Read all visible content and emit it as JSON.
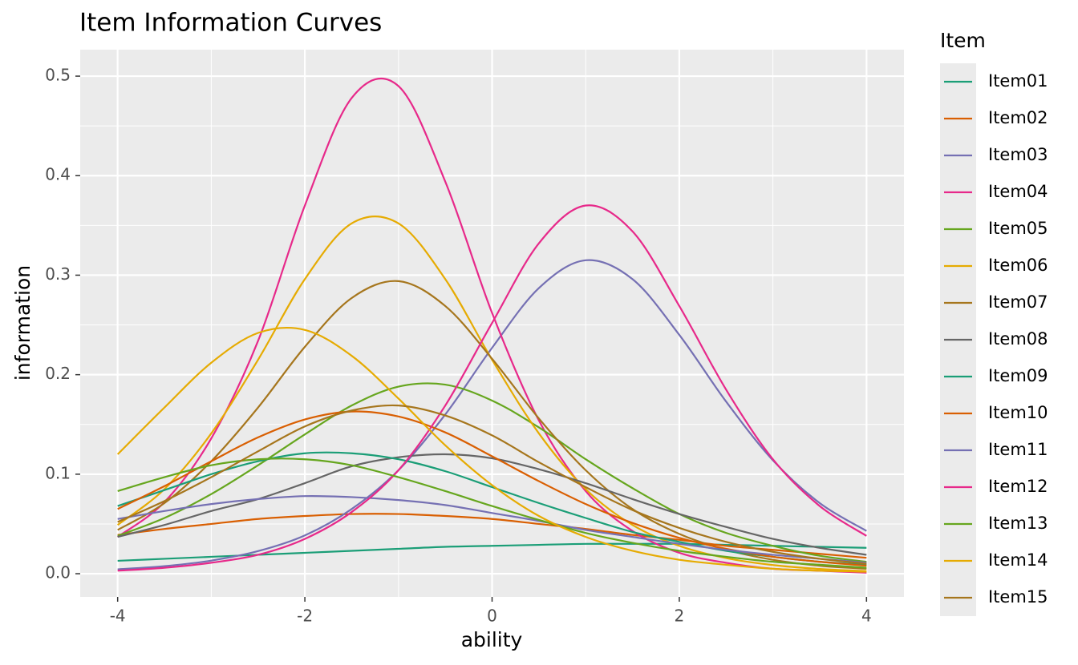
{
  "chart_data": {
    "type": "line",
    "title": "Item Information Curves",
    "x_label": "ability",
    "y_label": "information",
    "legend_title": "Item",
    "legend": "right",
    "grid": true,
    "xlim": [
      -4.4,
      4.4
    ],
    "ylim": [
      -0.0233,
      0.5266
    ],
    "xticks": [
      -4,
      -2,
      0,
      2,
      4
    ],
    "yticks": [
      {
        "value": 0,
        "label": "0.0"
      },
      0.1,
      0.2,
      0.3,
      0.4,
      0.5
    ],
    "x": [
      -4,
      -3.5,
      -3,
      -2.5,
      -2,
      -1.5,
      -1,
      -0.5,
      0,
      0.5,
      1,
      1.5,
      2,
      2.5,
      3,
      3.5,
      4
    ],
    "series": [
      {
        "name": "Item01",
        "color": "#1b9e77",
        "values": [
          0.013,
          0.015,
          0.017,
          0.019,
          0.021,
          0.023,
          0.025,
          0.027,
          0.028,
          0.029,
          0.03,
          0.03,
          0.03,
          0.029,
          0.028,
          0.027,
          0.026
        ]
      },
      {
        "name": "Item02",
        "color": "#d95f02",
        "values": [
          0.039,
          0.045,
          0.05,
          0.055,
          0.058,
          0.06,
          0.06,
          0.058,
          0.055,
          0.05,
          0.045,
          0.039,
          0.034,
          0.028,
          0.024,
          0.02,
          0.016
        ]
      },
      {
        "name": "Item03",
        "color": "#7570b3",
        "values": [
          0.0044,
          0.0076,
          0.0132,
          0.0227,
          0.0385,
          0.065,
          0.104,
          0.16,
          0.227,
          0.287,
          0.315,
          0.296,
          0.24,
          0.173,
          0.114,
          0.071,
          0.043
        ]
      },
      {
        "name": "Item04",
        "color": "#e7298a",
        "values": [
          0.037,
          0.072,
          0.136,
          0.234,
          0.37,
          0.478,
          0.49,
          0.394,
          0.262,
          0.154,
          0.083,
          0.043,
          0.021,
          0.011,
          0.005,
          0.003,
          0.001
        ]
      },
      {
        "name": "Item05",
        "color": "#66a61e",
        "values": [
          0.038,
          0.056,
          0.08,
          0.109,
          0.14,
          0.169,
          0.188,
          0.19,
          0.174,
          0.147,
          0.115,
          0.086,
          0.06,
          0.041,
          0.028,
          0.018,
          0.012
        ]
      },
      {
        "name": "Item06",
        "color": "#e6ab02",
        "values": [
          0.049,
          0.085,
          0.141,
          0.215,
          0.296,
          0.352,
          0.352,
          0.296,
          0.215,
          0.141,
          0.085,
          0.049,
          0.028,
          0.0157,
          0.0087,
          0.0048,
          0.0026
        ]
      },
      {
        "name": "Item07",
        "color": "#a6761d",
        "values": [
          0.044,
          0.071,
          0.113,
          0.167,
          0.228,
          0.277,
          0.294,
          0.269,
          0.216,
          0.156,
          0.104,
          0.065,
          0.04,
          0.024,
          0.014,
          0.008,
          0.005
        ]
      },
      {
        "name": "Item08",
        "color": "#666666",
        "values": [
          0.037,
          0.049,
          0.063,
          0.075,
          0.091,
          0.108,
          0.117,
          0.12,
          0.116,
          0.105,
          0.091,
          0.075,
          0.06,
          0.047,
          0.035,
          0.026,
          0.019
        ]
      },
      {
        "name": "Item09",
        "color": "#1b9e77",
        "values": [
          0.068,
          0.084,
          0.1,
          0.113,
          0.121,
          0.121,
          0.115,
          0.103,
          0.087,
          0.071,
          0.056,
          0.042,
          0.032,
          0.023,
          0.017,
          0.012,
          0.009
        ]
      },
      {
        "name": "Item10",
        "color": "#d95f02",
        "values": [
          0.065,
          0.088,
          0.113,
          0.137,
          0.155,
          0.163,
          0.158,
          0.142,
          0.118,
          0.093,
          0.07,
          0.051,
          0.036,
          0.025,
          0.017,
          0.012,
          0.008
        ]
      },
      {
        "name": "Item11",
        "color": "#7570b3",
        "values": [
          0.055,
          0.063,
          0.07,
          0.075,
          0.078,
          0.077,
          0.074,
          0.069,
          0.061,
          0.053,
          0.044,
          0.037,
          0.03,
          0.024,
          0.019,
          0.015,
          0.011
        ]
      },
      {
        "name": "Item12",
        "color": "#e7298a",
        "values": [
          0.003,
          0.006,
          0.011,
          0.019,
          0.035,
          0.062,
          0.104,
          0.169,
          0.252,
          0.332,
          0.37,
          0.344,
          0.269,
          0.185,
          0.115,
          0.068,
          0.038
        ]
      },
      {
        "name": "Item13",
        "color": "#66a61e",
        "values": [
          0.083,
          0.097,
          0.109,
          0.115,
          0.115,
          0.109,
          0.097,
          0.083,
          0.068,
          0.054,
          0.041,
          0.031,
          0.023,
          0.017,
          0.012,
          0.009,
          0.006
        ]
      },
      {
        "name": "Item14",
        "color": "#e6ab02",
        "values": [
          0.12,
          0.167,
          0.212,
          0.242,
          0.245,
          0.219,
          0.176,
          0.129,
          0.089,
          0.058,
          0.037,
          0.023,
          0.014,
          0.009,
          0.005,
          0.003,
          0.002
        ]
      },
      {
        "name": "Item15",
        "color": "#a6761d",
        "values": [
          0.052,
          0.073,
          0.097,
          0.123,
          0.148,
          0.164,
          0.169,
          0.159,
          0.139,
          0.112,
          0.087,
          0.064,
          0.046,
          0.032,
          0.022,
          0.015,
          0.01
        ]
      }
    ]
  }
}
